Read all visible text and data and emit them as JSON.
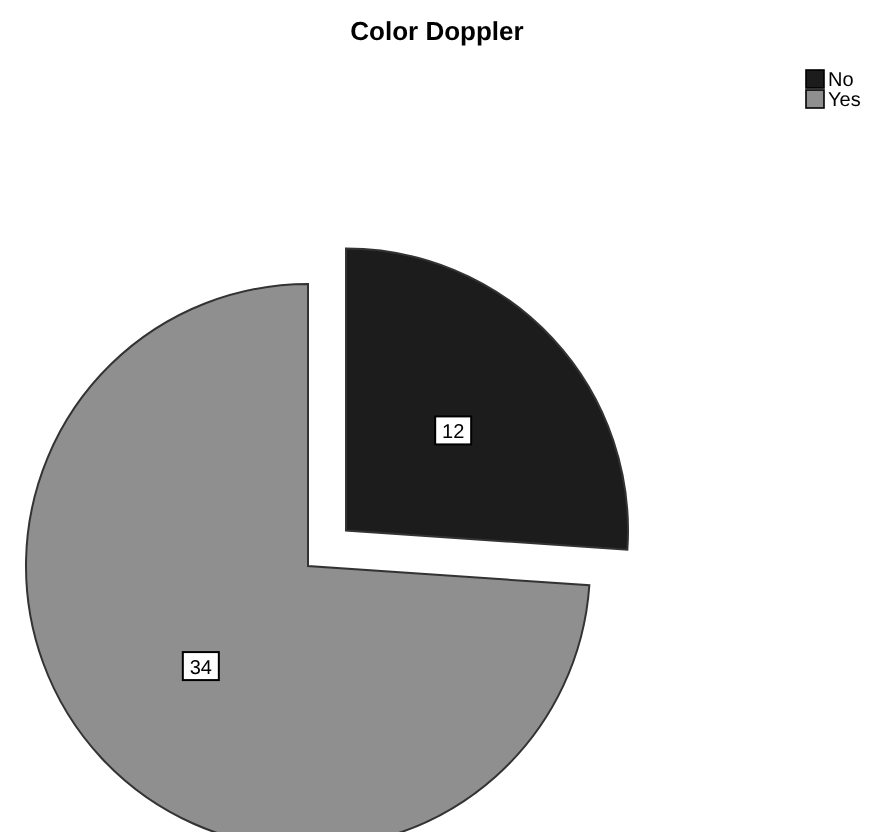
{
  "chart_data": {
    "type": "pie",
    "title": "Color Doppler",
    "categories": [
      "No",
      "Yes"
    ],
    "values": [
      12,
      34
    ],
    "colors": [
      "#1c1c1c",
      "#8f8f8f"
    ],
    "data_labels": true,
    "legend": "top right"
  }
}
